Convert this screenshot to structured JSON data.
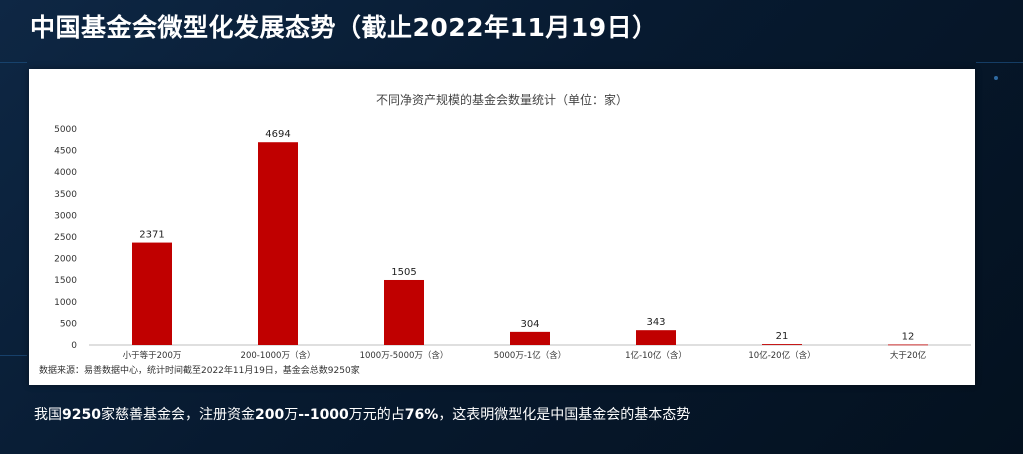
{
  "slide": {
    "title": "中国基金会微型化发展态势（截止2022年11月19日）"
  },
  "caption": {
    "parts": [
      {
        "text": "我国",
        "bold": false
      },
      {
        "text": "9250",
        "bold": true
      },
      {
        "text": "家慈善基金会，注册资金",
        "bold": false
      },
      {
        "text": "200",
        "bold": true
      },
      {
        "text": "万",
        "bold": false
      },
      {
        "text": "--1000",
        "bold": true
      },
      {
        "text": "万元的占",
        "bold": false
      },
      {
        "text": "76%",
        "bold": true
      },
      {
        "text": "，这表明微型化是中国基金会的基本态势",
        "bold": false
      }
    ]
  },
  "chart_data": {
    "type": "bar",
    "title": "不同净资产规模的基金会数量统计（单位：家）",
    "categories": [
      "小于等于200万",
      "200-1000万（含）",
      "1000万-5000万（含）",
      "5000万-1亿（含）",
      "1亿-10亿（含）",
      "10亿-20亿（含）",
      "大于20亿"
    ],
    "values": [
      2371,
      4694,
      1505,
      304,
      343,
      21,
      12
    ],
    "ylim": [
      0,
      5000
    ],
    "yticks": [
      0,
      500,
      1000,
      1500,
      2000,
      2500,
      3000,
      3500,
      4000,
      4500,
      5000
    ],
    "bar_color": "#c00000",
    "grid": false,
    "source_note": "数据来源：易善数据中心，统计时间截至2022年11月19日，基金会总数9250家"
  }
}
